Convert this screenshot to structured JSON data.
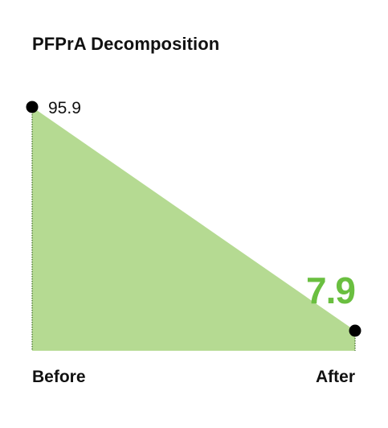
{
  "chart_data": {
    "type": "area",
    "title": "PFPrA Decomposition",
    "categories": [
      "Before",
      "After"
    ],
    "values": [
      95.9,
      7.9
    ],
    "value_labels": [
      "95.9",
      "7.9"
    ],
    "ylim": [
      0,
      100
    ],
    "grid": false,
    "legend": "none",
    "colors": {
      "fill": "#b5da92",
      "accent": "#6abf40",
      "marker": "#000000",
      "dotted_edge": "#3f6b2a"
    }
  }
}
